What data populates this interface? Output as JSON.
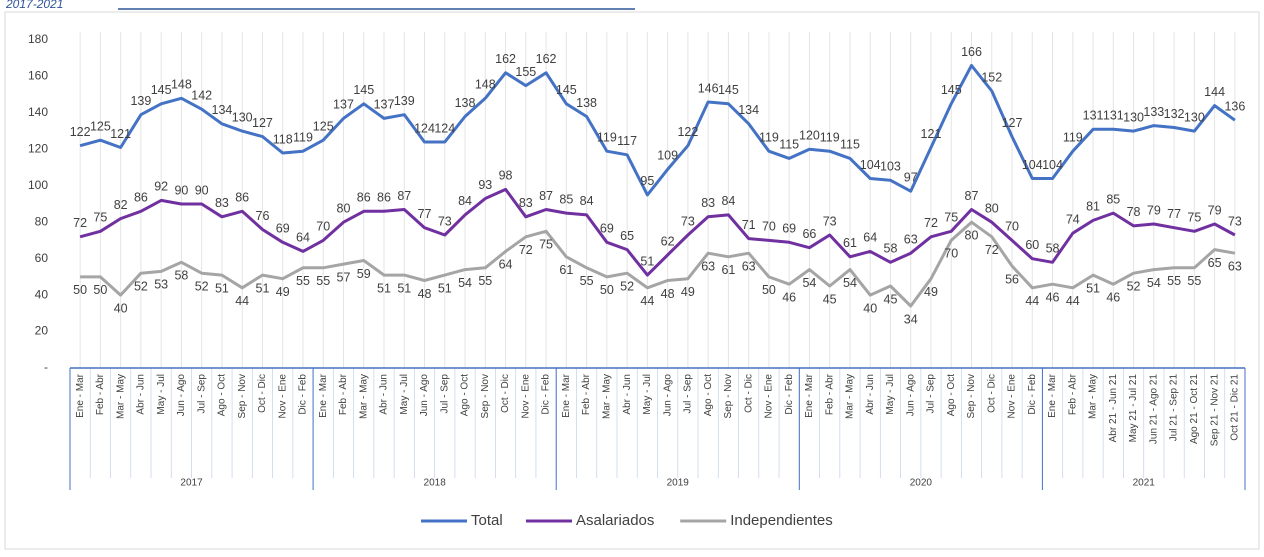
{
  "chart_data": {
    "type": "line",
    "title": "2017-2021",
    "groups": [
      {
        "name": "2017",
        "categories": [
          "Ene - Mar",
          "Feb - Abr",
          "Mar - May",
          "Abr - Jun",
          "May - Jul",
          "Jun - Ago",
          "Jul - Sep",
          "Ago - Oct",
          "Sep - Nov",
          "Oct - Dic",
          "Nov - Ene",
          "Dic - Feb"
        ]
      },
      {
        "name": "2018",
        "categories": [
          "Ene - Mar",
          "Feb - Abr",
          "Mar - May",
          "Abr - Jun",
          "May - Jul",
          "Jun - Ago",
          "Jul - Sep",
          "Ago - Oct",
          "Sep - Nov",
          "Oct - Dic",
          "Nov - Ene",
          "Dic - Feb"
        ]
      },
      {
        "name": "2019",
        "categories": [
          "Ene - Mar",
          "Feb - Abr",
          "Mar - May",
          "Abr - Jun",
          "May - Jul",
          "Jun - Ago",
          "Jul - Sep",
          "Ago - Oct",
          "Sep - Nov",
          "Oct - Dic",
          "Nov - Ene",
          "Dic - Feb"
        ]
      },
      {
        "name": "2020",
        "categories": [
          "Ene - Mar",
          "Feb - Abr",
          "Mar - May",
          "Abr - Jun",
          "May - Jul",
          "Jun - Ago",
          "Jul - Sep",
          "Ago - Oct",
          "Sep - Nov",
          "Oct - Dic",
          "Nov - Ene",
          "Dic - Feb"
        ]
      },
      {
        "name": "2021",
        "categories": [
          "Ene - Mar",
          "Feb - Abr",
          "Mar - May",
          "Abr 21 - Jun 21",
          "May 21 - Jul 21",
          "Jun 21 - Ago 21",
          "Jul 21 - Sep 21",
          "Ago 21 - Oct 21",
          "Sep 21 - Nov 21",
          "Oct 21 - Dic 21"
        ]
      }
    ],
    "series": [
      {
        "name": "Total",
        "color": "#4472c4",
        "label_position": "above",
        "values": [
          122,
          125,
          121,
          139,
          145,
          148,
          142,
          134,
          130,
          127,
          118,
          119,
          125,
          137,
          145,
          137,
          139,
          124,
          124,
          138,
          148,
          162,
          155,
          162,
          145,
          138,
          119,
          117,
          95,
          109,
          122,
          146,
          145,
          134,
          119,
          115,
          120,
          119,
          115,
          104,
          103,
          97,
          121,
          145,
          166,
          152,
          127,
          104,
          104,
          119,
          131,
          131,
          130,
          133,
          132,
          130,
          144,
          136
        ]
      },
      {
        "name": "Asalariados",
        "color": "#7030a0",
        "label_position": "above",
        "values": [
          72,
          75,
          82,
          86,
          92,
          90,
          90,
          83,
          86,
          76,
          69,
          64,
          70,
          80,
          86,
          86,
          87,
          77,
          73,
          84,
          93,
          98,
          83,
          87,
          85,
          84,
          69,
          65,
          51,
          62,
          73,
          83,
          84,
          71,
          70,
          69,
          66,
          73,
          61,
          64,
          58,
          63,
          72,
          75,
          87,
          80,
          70,
          60,
          58,
          74,
          81,
          85,
          78,
          79,
          77,
          75,
          79,
          73
        ]
      },
      {
        "name": "Independientes",
        "color": "#a5a5a5",
        "label_position": "below",
        "values": [
          50,
          50,
          40,
          52,
          53,
          58,
          52,
          51,
          44,
          51,
          49,
          55,
          55,
          57,
          59,
          51,
          51,
          48,
          51,
          54,
          55,
          64,
          72,
          75,
          61,
          55,
          50,
          52,
          44,
          48,
          49,
          63,
          61,
          63,
          50,
          46,
          54,
          45,
          54,
          40,
          45,
          34,
          49,
          70,
          80,
          72,
          56,
          44,
          46,
          44,
          51,
          46,
          52,
          54,
          55,
          55,
          65,
          63
        ]
      }
    ],
    "ylim": [
      0,
      180
    ],
    "yticks": [
      {
        "value": 0,
        "label": "-"
      },
      20,
      40,
      60,
      80,
      100,
      120,
      140,
      160,
      180
    ],
    "legend": "bottom"
  }
}
